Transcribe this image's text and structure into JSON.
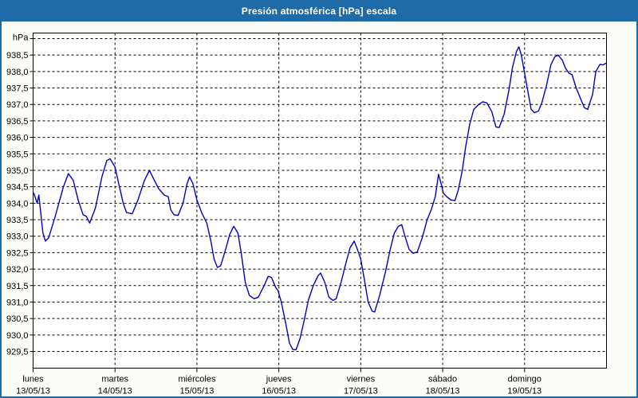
{
  "title": "Presión atmosférica [hPa] escala",
  "colors": {
    "header_bg": "#1e6ba8",
    "border": "#1e6ba8",
    "title_text": "#ffffff",
    "page_bg": "#fcfcf8",
    "plot_bg": "#ffffff",
    "frame": "#000000",
    "grid": "#000000",
    "axis_text": "#000000",
    "line": "#0000c8"
  },
  "chart_data": {
    "type": "line",
    "title": "Presión atmosférica [hPa] escala",
    "unit_label": "hPa",
    "legend": "none",
    "grid": "dashed",
    "y_axis": {
      "tick_start": 929.5,
      "tick_end": 939.0,
      "tick_step": 0.5,
      "labeled_min": 929.5,
      "labeled_max": 938.5,
      "frame_min": 929.0,
      "frame_max": 939.17,
      "decimal_separator": ","
    },
    "x_axis": {
      "span_days": 7,
      "days": [
        {
          "name": "lunes",
          "date": "13/05/13"
        },
        {
          "name": "martes",
          "date": "14/05/13"
        },
        {
          "name": "miércoles",
          "date": "15/05/13"
        },
        {
          "name": "jueves",
          "date": "16/05/13"
        },
        {
          "name": "viernes",
          "date": "17/05/13"
        },
        {
          "name": "sábado",
          "date": "18/05/13"
        },
        {
          "name": "domingo",
          "date": "19/05/13"
        }
      ]
    },
    "series": [
      {
        "name": "Presión atmosférica",
        "points": [
          [
            0.01,
            934.3
          ],
          [
            0.05,
            934.0
          ],
          [
            0.07,
            934.25
          ],
          [
            0.12,
            933.1
          ],
          [
            0.15,
            932.85
          ],
          [
            0.19,
            932.95
          ],
          [
            0.27,
            933.6
          ],
          [
            0.37,
            934.5
          ],
          [
            0.43,
            934.9
          ],
          [
            0.49,
            934.7
          ],
          [
            0.55,
            934.1
          ],
          [
            0.61,
            933.65
          ],
          [
            0.65,
            933.6
          ],
          [
            0.69,
            933.4
          ],
          [
            0.76,
            933.85
          ],
          [
            0.84,
            934.8
          ],
          [
            0.9,
            935.3
          ],
          [
            0.94,
            935.35
          ],
          [
            1.0,
            935.1
          ],
          [
            1.05,
            934.55
          ],
          [
            1.1,
            934.0
          ],
          [
            1.14,
            933.72
          ],
          [
            1.21,
            933.68
          ],
          [
            1.28,
            934.1
          ],
          [
            1.36,
            934.7
          ],
          [
            1.42,
            935.0
          ],
          [
            1.48,
            934.7
          ],
          [
            1.53,
            934.45
          ],
          [
            1.6,
            934.25
          ],
          [
            1.65,
            934.2
          ],
          [
            1.68,
            933.8
          ],
          [
            1.72,
            933.65
          ],
          [
            1.77,
            933.63
          ],
          [
            1.83,
            934.0
          ],
          [
            1.88,
            934.6
          ],
          [
            1.91,
            934.8
          ],
          [
            1.95,
            934.6
          ],
          [
            2.0,
            934.1
          ],
          [
            2.06,
            933.7
          ],
          [
            2.12,
            933.4
          ],
          [
            2.17,
            932.85
          ],
          [
            2.21,
            932.3
          ],
          [
            2.25,
            932.05
          ],
          [
            2.29,
            932.1
          ],
          [
            2.35,
            932.6
          ],
          [
            2.4,
            933.05
          ],
          [
            2.45,
            933.3
          ],
          [
            2.5,
            933.1
          ],
          [
            2.54,
            932.5
          ],
          [
            2.59,
            931.6
          ],
          [
            2.64,
            931.2
          ],
          [
            2.7,
            931.1
          ],
          [
            2.75,
            931.15
          ],
          [
            2.82,
            931.5
          ],
          [
            2.87,
            931.78
          ],
          [
            2.91,
            931.75
          ],
          [
            2.96,
            931.45
          ],
          [
            2.99,
            931.35
          ],
          [
            3.03,
            931.0
          ],
          [
            3.08,
            930.4
          ],
          [
            3.13,
            929.75
          ],
          [
            3.17,
            929.56
          ],
          [
            3.21,
            929.55
          ],
          [
            3.26,
            929.9
          ],
          [
            3.31,
            930.45
          ],
          [
            3.36,
            931.05
          ],
          [
            3.42,
            931.5
          ],
          [
            3.48,
            931.8
          ],
          [
            3.51,
            931.88
          ],
          [
            3.56,
            931.6
          ],
          [
            3.61,
            931.15
          ],
          [
            3.66,
            931.05
          ],
          [
            3.7,
            931.1
          ],
          [
            3.76,
            931.6
          ],
          [
            3.82,
            932.2
          ],
          [
            3.87,
            932.65
          ],
          [
            3.92,
            932.85
          ],
          [
            3.96,
            932.6
          ],
          [
            4.0,
            932.3
          ],
          [
            4.05,
            931.6
          ],
          [
            4.09,
            931.0
          ],
          [
            4.14,
            930.72
          ],
          [
            4.17,
            930.7
          ],
          [
            4.23,
            931.2
          ],
          [
            4.3,
            931.9
          ],
          [
            4.36,
            932.6
          ],
          [
            4.41,
            933.1
          ],
          [
            4.46,
            933.3
          ],
          [
            4.5,
            933.35
          ],
          [
            4.54,
            933.0
          ],
          [
            4.59,
            932.6
          ],
          [
            4.64,
            932.48
          ],
          [
            4.69,
            932.52
          ],
          [
            4.75,
            932.95
          ],
          [
            4.81,
            933.5
          ],
          [
            4.86,
            933.8
          ],
          [
            4.91,
            934.2
          ],
          [
            4.95,
            934.88
          ],
          [
            4.98,
            934.6
          ],
          [
            5.01,
            934.3
          ],
          [
            5.05,
            934.2
          ],
          [
            5.1,
            934.1
          ],
          [
            5.15,
            934.08
          ],
          [
            5.19,
            934.4
          ],
          [
            5.24,
            935.0
          ],
          [
            5.28,
            935.7
          ],
          [
            5.33,
            936.4
          ],
          [
            5.38,
            936.85
          ],
          [
            5.44,
            937.0
          ],
          [
            5.49,
            937.08
          ],
          [
            5.54,
            937.05
          ],
          [
            5.6,
            936.78
          ],
          [
            5.65,
            936.32
          ],
          [
            5.69,
            936.3
          ],
          [
            5.75,
            936.7
          ],
          [
            5.81,
            937.45
          ],
          [
            5.85,
            938.1
          ],
          [
            5.9,
            938.6
          ],
          [
            5.93,
            938.75
          ],
          [
            5.96,
            938.5
          ],
          [
            6.0,
            937.95
          ],
          [
            6.04,
            937.4
          ],
          [
            6.08,
            936.85
          ],
          [
            6.12,
            936.75
          ],
          [
            6.17,
            936.8
          ],
          [
            6.21,
            937.05
          ],
          [
            6.27,
            937.6
          ],
          [
            6.32,
            938.2
          ],
          [
            6.37,
            938.45
          ],
          [
            6.41,
            938.5
          ],
          [
            6.46,
            938.35
          ],
          [
            6.5,
            938.1
          ],
          [
            6.54,
            937.95
          ],
          [
            6.58,
            937.9
          ],
          [
            6.63,
            937.5
          ],
          [
            6.68,
            937.2
          ],
          [
            6.73,
            936.9
          ],
          [
            6.77,
            936.85
          ],
          [
            6.83,
            937.3
          ],
          [
            6.87,
            938.0
          ],
          [
            6.92,
            938.22
          ],
          [
            6.96,
            938.2
          ],
          [
            6.99,
            938.25
          ]
        ]
      }
    ]
  }
}
